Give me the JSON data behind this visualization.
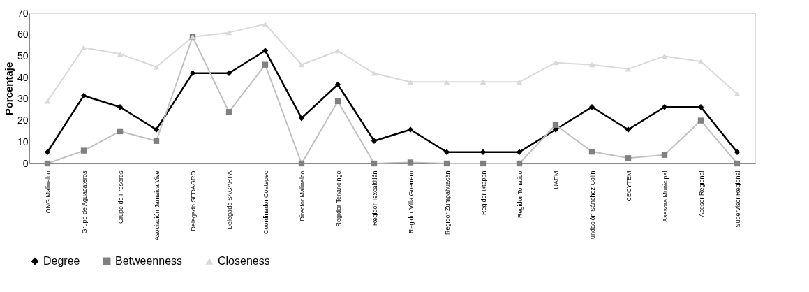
{
  "chart_data": {
    "type": "line",
    "ylabel": "Porcentaje",
    "categories": [
      "ONG Malinalco",
      "Grupo de Aguacateros",
      "Grupo de Freseros",
      "Asociación Jamaica Vive",
      "Delegado SEDAGRO",
      "Delegado SAGARPA",
      "Coordinador Coatepec",
      "Director Malinalco",
      "Regidor Tenancingo",
      "Regidor Texcaltitlán",
      "Regidor Villa Guerrero",
      "Regidor Zumpahuacán",
      "Regidor Ixtapan",
      "Regidor Tonatico",
      "UAEM",
      "Fundación Sánchez Colín",
      "CECYTEM",
      "Asesora Municipal",
      "Asesor Regional",
      "Supervisor Regional"
    ],
    "series": [
      {
        "name": "Degree",
        "color": "#000000",
        "marker": "diamond",
        "values": [
          5.3,
          31.6,
          26.3,
          15.8,
          42.1,
          42.1,
          52.6,
          21.1,
          36.8,
          10.5,
          15.8,
          5.3,
          5.3,
          5.3,
          15.8,
          26.3,
          15.8,
          26.3,
          26.3,
          5.3
        ]
      },
      {
        "name": "Betweenness",
        "color": "#c0c0c0",
        "marker": "square",
        "values": [
          0,
          6,
          15,
          10.5,
          59,
          24,
          46,
          0,
          29,
          0,
          0.5,
          0,
          0,
          0,
          18,
          5.5,
          2.5,
          4,
          20,
          0
        ]
      },
      {
        "name": "Closeness",
        "color": "#d9d9d9",
        "marker": "triangle",
        "values": [
          29,
          54,
          51,
          45,
          59,
          61,
          65,
          46,
          52.5,
          42,
          38,
          38,
          38,
          38,
          47,
          46,
          44,
          50,
          47.5,
          32.5
        ]
      }
    ],
    "ylim": [
      0,
      70
    ],
    "yticks": [
      0,
      10,
      20,
      30,
      40,
      50,
      60,
      70
    ],
    "grid": false,
    "legend": "bottom",
    "line_style": "solid"
  }
}
